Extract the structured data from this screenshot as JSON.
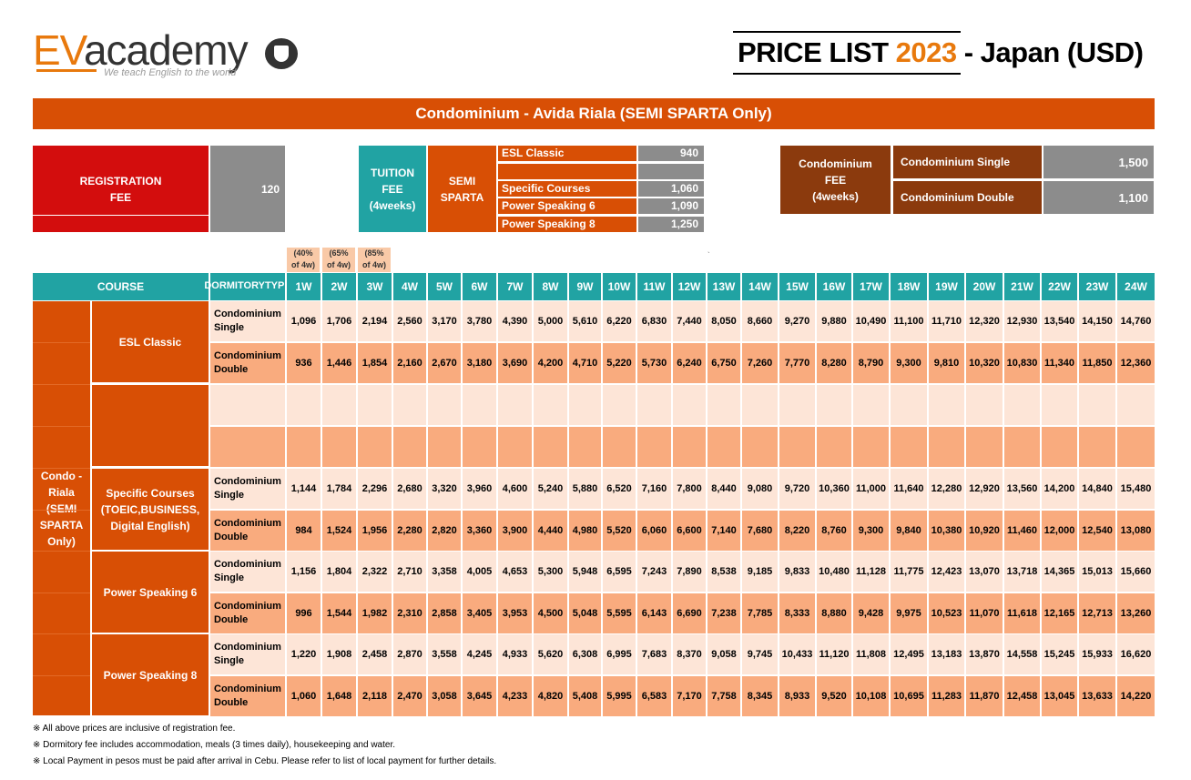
{
  "logo": {
    "ev": "EV",
    "rest": "academy",
    "tagline": "We teach English to the world"
  },
  "title": {
    "prefix": "PRICE LIST ",
    "year": "2023",
    "suffix": " - Japan (USD)"
  },
  "banner": "Condominium - Avida Riala (SEMI SPARTA Only)",
  "registration": {
    "label_1": "REGISTRATION",
    "label_2": "FEE",
    "value": "120"
  },
  "tuition": {
    "label_1": "TUITION",
    "label_2": "FEE",
    "label_3": "(4weeks)",
    "mode_1": "SEMI",
    "mode_2": "SPARTA",
    "rows": [
      {
        "name": "ESL Classic",
        "value": "940"
      },
      {
        "name": "",
        "value": ""
      },
      {
        "name": "Specific Courses",
        "value": "1,060"
      },
      {
        "name": "Power Speaking 6",
        "value": "1,090"
      },
      {
        "name": "Power Speaking 8",
        "value": "1,250"
      }
    ]
  },
  "condo_fee": {
    "label_1": "Condominium",
    "label_2": "FEE",
    "label_3": "(4weeks)",
    "rows": [
      {
        "name": "Condominium Single",
        "value": "1,500"
      },
      {
        "name": "Condominium Double",
        "value": "1,100"
      }
    ]
  },
  "discounts": [
    {
      "line1": "(40%",
      "line2": "of 4w)"
    },
    {
      "line1": "(65%",
      "line2": "of 4w)"
    },
    {
      "line1": "(85%",
      "line2": "of 4w)"
    }
  ],
  "dot": "`",
  "table": {
    "header_course": "COURSE",
    "header_dorm_1": "DORMITORY",
    "header_dorm_2": "TYPE",
    "weeks": [
      "1W",
      "2W",
      "3W",
      "4W",
      "5W",
      "6W",
      "7W",
      "8W",
      "9W",
      "10W",
      "11W",
      "12W",
      "13W",
      "14W",
      "15W",
      "16W",
      "17W",
      "18W",
      "19W",
      "20W",
      "21W",
      "22W",
      "23W",
      "24W"
    ],
    "location": {
      "l1": "Condo -",
      "l2": "Riala",
      "l3": "(SEMI",
      "l4": "SPARTA",
      "l5": "Only)"
    },
    "courses": [
      {
        "name_1": "ESL Classic",
        "name_2": "",
        "name_3": ""
      },
      {
        "name_1": "",
        "name_2": "",
        "name_3": ""
      },
      {
        "name_1": "Specific Courses",
        "name_2": "(TOEIC,BUSINESS,",
        "name_3": "Digital English)"
      },
      {
        "name_1": "Power Speaking 6",
        "name_2": "",
        "name_3": ""
      },
      {
        "name_1": "Power Speaking 8",
        "name_2": "",
        "name_3": ""
      }
    ],
    "rows": [
      {
        "d1": "Condominium",
        "d2": "Single",
        "values": [
          "1,096",
          "1,706",
          "2,194",
          "2,560",
          "3,170",
          "3,780",
          "4,390",
          "5,000",
          "5,610",
          "6,220",
          "6,830",
          "7,440",
          "8,050",
          "8,660",
          "9,270",
          "9,880",
          "10,490",
          "11,100",
          "11,710",
          "12,320",
          "12,930",
          "13,540",
          "14,150",
          "14,760"
        ]
      },
      {
        "d1": "Condominium",
        "d2": "Double",
        "values": [
          "936",
          "1,446",
          "1,854",
          "2,160",
          "2,670",
          "3,180",
          "3,690",
          "4,200",
          "4,710",
          "5,220",
          "5,730",
          "6,240",
          "6,750",
          "7,260",
          "7,770",
          "8,280",
          "8,790",
          "9,300",
          "9,810",
          "10,320",
          "10,830",
          "11,340",
          "11,850",
          "12,360"
        ]
      },
      {
        "d1": "",
        "d2": "",
        "values": [
          "",
          "",
          "",
          "",
          "",
          "",
          "",
          "",
          "",
          "",
          "",
          "",
          "",
          "",
          "",
          "",
          "",
          "",
          "",
          "",
          "",
          "",
          "",
          ""
        ]
      },
      {
        "d1": "",
        "d2": "",
        "values": [
          "",
          "",
          "",
          "",
          "",
          "",
          "",
          "",
          "",
          "",
          "",
          "",
          "",
          "",
          "",
          "",
          "",
          "",
          "",
          "",
          "",
          "",
          "",
          ""
        ]
      },
      {
        "d1": "Condominium",
        "d2": "Single",
        "values": [
          "1,144",
          "1,784",
          "2,296",
          "2,680",
          "3,320",
          "3,960",
          "4,600",
          "5,240",
          "5,880",
          "6,520",
          "7,160",
          "7,800",
          "8,440",
          "9,080",
          "9,720",
          "10,360",
          "11,000",
          "11,640",
          "12,280",
          "12,920",
          "13,560",
          "14,200",
          "14,840",
          "15,480"
        ]
      },
      {
        "d1": "Condominium",
        "d2": "Double",
        "values": [
          "984",
          "1,524",
          "1,956",
          "2,280",
          "2,820",
          "3,360",
          "3,900",
          "4,440",
          "4,980",
          "5,520",
          "6,060",
          "6,600",
          "7,140",
          "7,680",
          "8,220",
          "8,760",
          "9,300",
          "9,840",
          "10,380",
          "10,920",
          "11,460",
          "12,000",
          "12,540",
          "13,080"
        ]
      },
      {
        "d1": "Condominium",
        "d2": "Single",
        "values": [
          "1,156",
          "1,804",
          "2,322",
          "2,710",
          "3,358",
          "4,005",
          "4,653",
          "5,300",
          "5,948",
          "6,595",
          "7,243",
          "7,890",
          "8,538",
          "9,185",
          "9,833",
          "10,480",
          "11,128",
          "11,775",
          "12,423",
          "13,070",
          "13,718",
          "14,365",
          "15,013",
          "15,660"
        ]
      },
      {
        "d1": "Condominium",
        "d2": "Double",
        "values": [
          "996",
          "1,544",
          "1,982",
          "2,310",
          "2,858",
          "3,405",
          "3,953",
          "4,500",
          "5,048",
          "5,595",
          "6,143",
          "6,690",
          "7,238",
          "7,785",
          "8,333",
          "8,880",
          "9,428",
          "9,975",
          "10,523",
          "11,070",
          "11,618",
          "12,165",
          "12,713",
          "13,260"
        ]
      },
      {
        "d1": "Condominium",
        "d2": "Single",
        "values": [
          "1,220",
          "1,908",
          "2,458",
          "2,870",
          "3,558",
          "4,245",
          "4,933",
          "5,620",
          "6,308",
          "6,995",
          "7,683",
          "8,370",
          "9,058",
          "9,745",
          "10,433",
          "11,120",
          "11,808",
          "12,495",
          "13,183",
          "13,870",
          "14,558",
          "15,245",
          "15,933",
          "16,620"
        ]
      },
      {
        "d1": "Condominium",
        "d2": "Double",
        "values": [
          "1,060",
          "1,648",
          "2,118",
          "2,470",
          "3,058",
          "3,645",
          "4,233",
          "4,820",
          "5,408",
          "5,995",
          "6,583",
          "7,170",
          "7,758",
          "8,345",
          "8,933",
          "9,520",
          "10,108",
          "10,695",
          "11,283",
          "11,870",
          "12,458",
          "13,045",
          "13,633",
          "14,220"
        ]
      }
    ]
  },
  "notes": [
    "※ All above prices are inclusive of registration fee.",
    "※ Dormitory fee includes accommodation, meals (3 times daily), housekeeping and water.",
    "※ Local Payment in pesos must be paid after arrival in Cebu. Please refer to list of local payment for further details."
  ]
}
